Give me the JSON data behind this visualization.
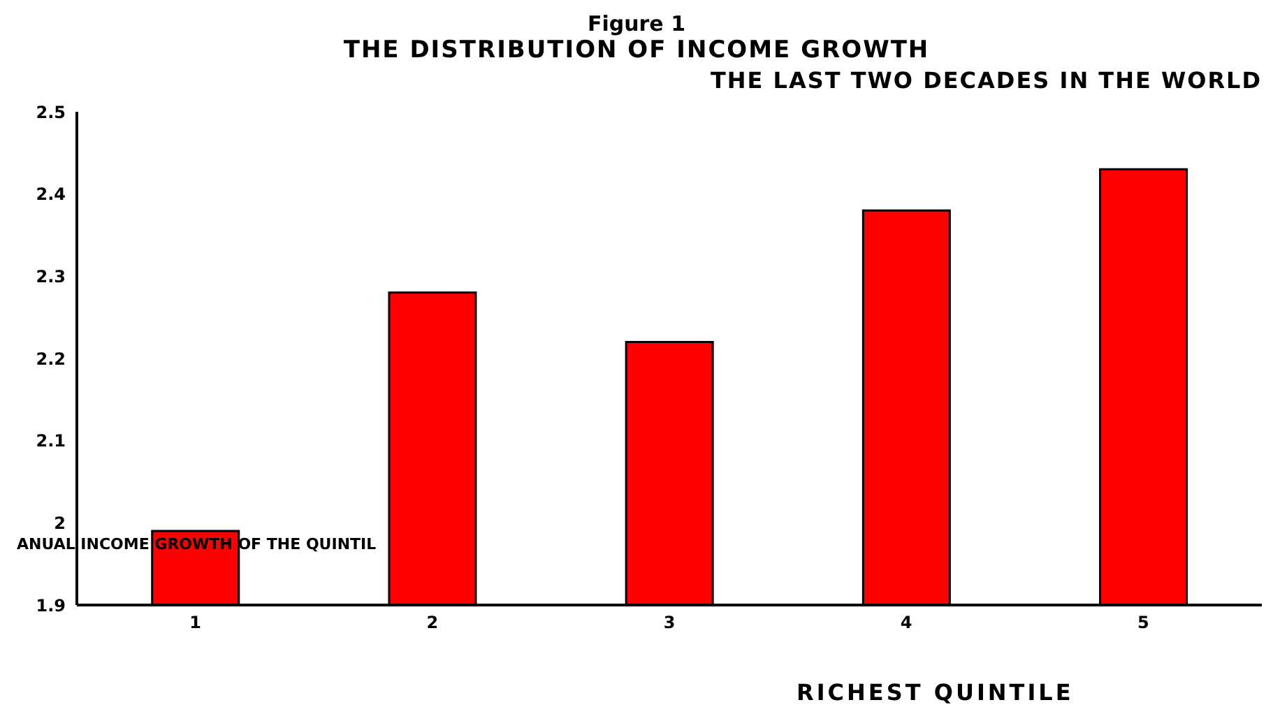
{
  "chart_data": {
    "type": "bar",
    "title": "Figure 1",
    "subtitle": "THE DISTRIBUTION OF INCOME GROWTH",
    "annotations": [
      "THE LAST TWO DECADES IN THE WORLD"
    ],
    "ylabel": "ANUAL INCOME GROWTH OF THE QUINTIL",
    "xlabel": "RICHEST QUINTILE",
    "categories": [
      "1",
      "2",
      "3",
      "4",
      "5"
    ],
    "values": [
      1.99,
      2.28,
      2.22,
      2.38,
      2.43
    ],
    "color": "#ff0000",
    "ylim": [
      1.9,
      2.5
    ],
    "yticks": [
      1.9,
      2,
      2.1,
      2.2,
      2.3,
      2.4,
      2.5
    ],
    "grid": false,
    "legend": false
  }
}
